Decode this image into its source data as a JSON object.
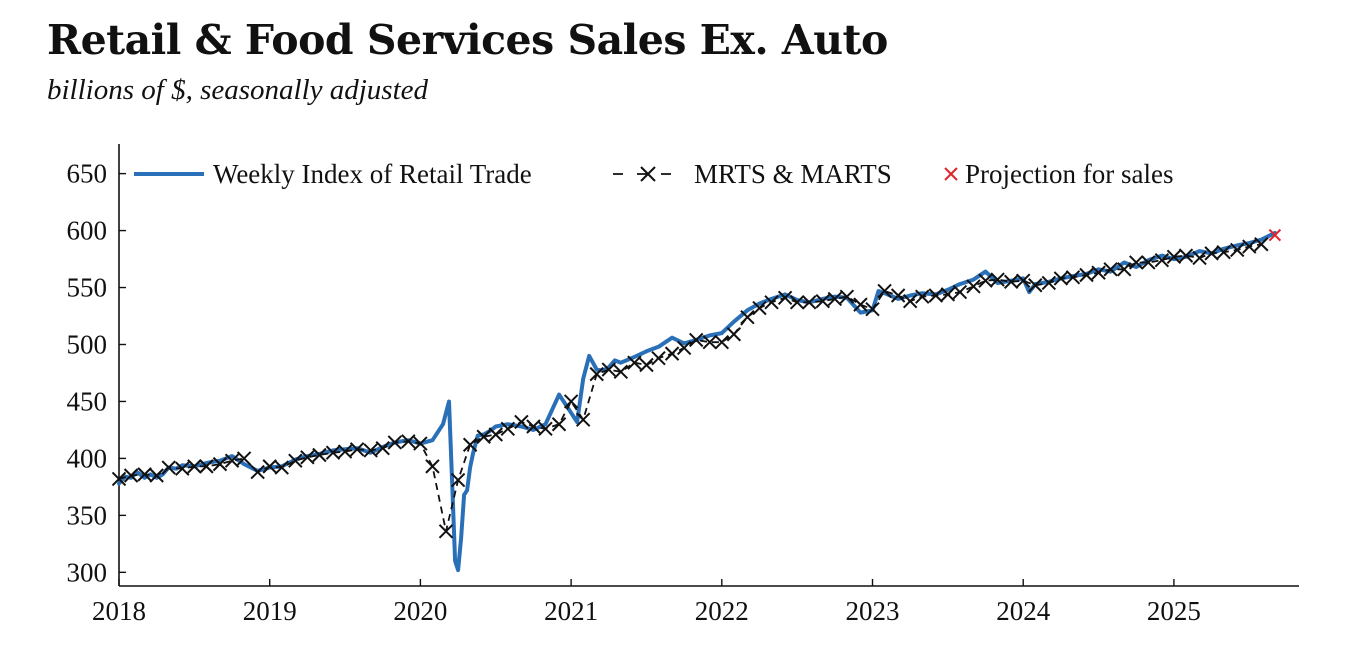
{
  "title": "Retail & Food Services Sales Ex. Auto",
  "subtitle": "billions of $, seasonally adjusted",
  "colors": {
    "weekly": "#2a70b8",
    "mrts": "#111111",
    "projection": "#e2252b"
  },
  "chart_data": {
    "type": "line",
    "title": "Retail & Food Services Sales Ex. Auto",
    "subtitle": "billions of $, seasonally adjusted",
    "xlabel": "",
    "ylabel": "",
    "xlim": [
      2018.0,
      2025.83
    ],
    "ylim": [
      288,
      676
    ],
    "x_ticks": [
      2018,
      2019,
      2020,
      2021,
      2022,
      2023,
      2024,
      2025
    ],
    "x_tick_labels": [
      "2018",
      "2019",
      "2020",
      "2021",
      "2022",
      "2023",
      "2024",
      "2025"
    ],
    "y_ticks": [
      300,
      350,
      400,
      450,
      500,
      550,
      600,
      650
    ],
    "y_tick_labels": [
      "300",
      "350",
      "400",
      "450",
      "500",
      "550",
      "600",
      "650"
    ],
    "legend": {
      "placement": "top-left",
      "entries": [
        "Weekly Index of Retail Trade",
        "MRTS & MARTS",
        "Projection for sales"
      ]
    },
    "series": [
      {
        "name": "Weekly Index of Retail Trade",
        "style": "solid-line",
        "x": [
          2018.0,
          2018.04,
          2018.08,
          2018.12,
          2018.17,
          2018.21,
          2018.25,
          2018.29,
          2018.33,
          2018.38,
          2018.42,
          2018.5,
          2018.58,
          2018.67,
          2018.75,
          2018.83,
          2018.92,
          2019.0,
          2019.08,
          2019.17,
          2019.25,
          2019.33,
          2019.42,
          2019.5,
          2019.58,
          2019.67,
          2019.75,
          2019.83,
          2019.92,
          2020.0,
          2020.08,
          2020.15,
          2020.19,
          2020.21,
          2020.23,
          2020.25,
          2020.27,
          2020.29,
          2020.31,
          2020.33,
          2020.35,
          2020.38,
          2020.42,
          2020.46,
          2020.5,
          2020.58,
          2020.67,
          2020.75,
          2020.83,
          2020.92,
          2021.0,
          2021.04,
          2021.08,
          2021.12,
          2021.17,
          2021.21,
          2021.25,
          2021.29,
          2021.33,
          2021.42,
          2021.5,
          2021.58,
          2021.67,
          2021.75,
          2021.83,
          2021.92,
          2022.0,
          2022.08,
          2022.17,
          2022.25,
          2022.33,
          2022.42,
          2022.5,
          2022.58,
          2022.67,
          2022.75,
          2022.83,
          2022.92,
          2023.0,
          2023.04,
          2023.08,
          2023.17,
          2023.25,
          2023.33,
          2023.42,
          2023.5,
          2023.58,
          2023.67,
          2023.75,
          2023.83,
          2023.92,
          2024.0,
          2024.04,
          2024.08,
          2024.17,
          2024.25,
          2024.33,
          2024.42,
          2024.5,
          2024.58,
          2024.67,
          2024.75,
          2024.83,
          2024.92,
          2025.0,
          2025.08,
          2025.17,
          2025.25,
          2025.33,
          2025.42,
          2025.5,
          2025.58,
          2025.67
        ],
        "values": [
          378,
          384,
          383,
          388,
          383,
          386,
          383,
          386,
          392,
          391,
          394,
          393,
          396,
          398,
          402,
          395,
          389,
          392,
          393,
          399,
          402,
          404,
          407,
          408,
          409,
          405,
          410,
          414,
          416,
          413,
          416,
          430,
          450,
          380,
          310,
          302,
          330,
          368,
          372,
          392,
          405,
          420,
          421,
          424,
          428,
          430,
          428,
          425,
          430,
          456,
          440,
          432,
          470,
          490,
          478,
          477,
          480,
          486,
          484,
          489,
          494,
          498,
          506,
          501,
          504,
          508,
          510,
          520,
          530,
          536,
          540,
          544,
          539,
          537,
          540,
          542,
          541,
          528,
          530,
          547,
          545,
          540,
          543,
          545,
          544,
          548,
          553,
          557,
          564,
          554,
          556,
          558,
          546,
          553,
          555,
          558,
          560,
          562,
          566,
          564,
          572,
          568,
          574,
          578,
          575,
          577,
          582,
          580,
          584,
          587,
          589,
          592,
          598
        ]
      },
      {
        "name": "MRTS & MARTS",
        "style": "dashed-line-with-x-markers",
        "x": [
          2018.0,
          2018.08,
          2018.17,
          2018.25,
          2018.33,
          2018.42,
          2018.5,
          2018.58,
          2018.67,
          2018.75,
          2018.83,
          2018.92,
          2019.0,
          2019.08,
          2019.17,
          2019.25,
          2019.33,
          2019.42,
          2019.5,
          2019.58,
          2019.67,
          2019.75,
          2019.83,
          2019.92,
          2020.0,
          2020.08,
          2020.17,
          2020.25,
          2020.33,
          2020.42,
          2020.5,
          2020.58,
          2020.67,
          2020.75,
          2020.83,
          2020.92,
          2021.0,
          2021.08,
          2021.17,
          2021.25,
          2021.33,
          2021.42,
          2021.5,
          2021.58,
          2021.67,
          2021.75,
          2021.83,
          2021.92,
          2022.0,
          2022.08,
          2022.17,
          2022.25,
          2022.33,
          2022.42,
          2022.5,
          2022.58,
          2022.67,
          2022.75,
          2022.83,
          2022.92,
          2023.0,
          2023.08,
          2023.17,
          2023.25,
          2023.33,
          2023.42,
          2023.5,
          2023.58,
          2023.67,
          2023.75,
          2023.83,
          2023.92,
          2024.0,
          2024.08,
          2024.17,
          2024.25,
          2024.33,
          2024.42,
          2024.5,
          2024.58,
          2024.67,
          2024.75,
          2024.83,
          2024.92,
          2025.0,
          2025.08,
          2025.17,
          2025.25,
          2025.33,
          2025.42,
          2025.5,
          2025.58
        ],
        "values": [
          382,
          385,
          386,
          385,
          392,
          391,
          393,
          393,
          395,
          398,
          400,
          388,
          393,
          392,
          398,
          401,
          403,
          405,
          406,
          408,
          407,
          409,
          414,
          415,
          413,
          393,
          336,
          381,
          412,
          419,
          421,
          426,
          432,
          428,
          426,
          430,
          450,
          434,
          474,
          478,
          476,
          484,
          482,
          488,
          492,
          497,
          504,
          502,
          502,
          509,
          524,
          532,
          537,
          541,
          537,
          537,
          538,
          540,
          542,
          535,
          531,
          547,
          543,
          538,
          542,
          543,
          544,
          546,
          551,
          556,
          557,
          555,
          556,
          552,
          554,
          558,
          559,
          561,
          563,
          566,
          566,
          572,
          572,
          574,
          577,
          578,
          576,
          580,
          581,
          583,
          586,
          588
        ]
      },
      {
        "name": "Projection for sales",
        "style": "x-marker",
        "x": [
          2025.67
        ],
        "values": [
          596
        ]
      }
    ]
  }
}
